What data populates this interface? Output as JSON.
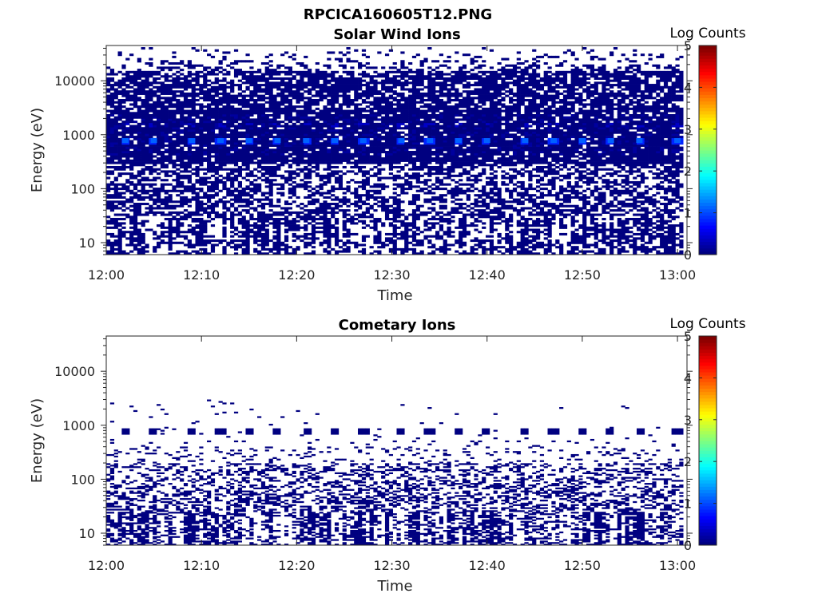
{
  "figure_title": "RPCICA160605T12.PNG",
  "chart_data": [
    {
      "type": "heatmap",
      "title": "Solar Wind Ions",
      "xlabel": "Time",
      "ylabel": "Energy (eV)",
      "x_ticks": [
        "12:00",
        "12:10",
        "12:20",
        "12:30",
        "12:40",
        "12:50",
        "13:00"
      ],
      "y_ticks": [
        "10",
        "100",
        "1000",
        "10000"
      ],
      "y_scale": "log",
      "xlim": [
        "12:00",
        "13:01"
      ],
      "ylim": [
        6,
        45000
      ],
      "colorbar": {
        "label": "Log Counts",
        "ticks": [
          "0",
          "1",
          "2",
          "3",
          "4",
          "5"
        ],
        "range": [
          0,
          5
        ],
        "colormap": "jet"
      },
      "grid": false,
      "description_values": {
        "background_count_level_log": 0,
        "peak_energy_eV": 780,
        "peak_log_counts": 0.8,
        "peak_times": [
          "12:02",
          "12:05",
          "12:09",
          "12:12",
          "12:15",
          "12:18",
          "12:21",
          "12:24",
          "12:27",
          "12:31",
          "12:34",
          "12:37",
          "12:40",
          "12:44",
          "12:47",
          "12:50",
          "12:53",
          "12:56",
          "13:00"
        ],
        "secondary_energy_eV": 1550,
        "secondary_log_counts": 0.4
      }
    },
    {
      "type": "heatmap",
      "title": "Cometary Ions",
      "xlabel": "Time",
      "ylabel": "Energy (eV)",
      "x_ticks": [
        "12:00",
        "12:10",
        "12:20",
        "12:30",
        "12:40",
        "12:50",
        "13:00"
      ],
      "y_ticks": [
        "10",
        "100",
        "1000",
        "10000"
      ],
      "y_scale": "log",
      "xlim": [
        "12:00",
        "13:01"
      ],
      "ylim": [
        6,
        45000
      ],
      "colorbar": {
        "label": "Log Counts",
        "ticks": [
          "0",
          "1",
          "2",
          "3",
          "4",
          "5"
        ],
        "range": [
          0,
          5
        ],
        "colormap": "jet"
      },
      "grid": false,
      "description_values": {
        "background_count_level_log": 0,
        "band_energy_eV": 780,
        "band_times": [
          "12:02",
          "12:05",
          "12:09",
          "12:12",
          "12:15",
          "12:18",
          "12:21",
          "12:24",
          "12:27",
          "12:31",
          "12:34",
          "12:37",
          "12:40",
          "12:44",
          "12:47",
          "12:50",
          "12:53",
          "12:56",
          "13:00"
        ],
        "low_energy_fill_max_eV": 60
      }
    }
  ]
}
